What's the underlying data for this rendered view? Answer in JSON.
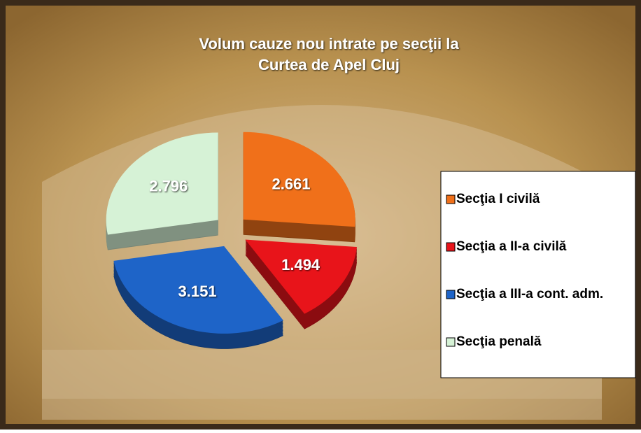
{
  "chart_data": {
    "type": "pie",
    "title": [
      "Volum cauze nou intrate pe secţii la",
      "Curtea de Apel Cluj"
    ],
    "categories": [
      "Secţia I civilă",
      "Secţia a II-a civilă",
      "Secţia a III-a cont. adm.",
      "Secţia penală"
    ],
    "values": [
      2661,
      1494,
      3151,
      2796
    ],
    "value_labels": [
      "2.661",
      "1.494",
      "3.151",
      "2.796"
    ],
    "colors": [
      "#f0701a",
      "#e8141a",
      "#1e64c8",
      "#d6f2d6"
    ],
    "legend": "right"
  }
}
